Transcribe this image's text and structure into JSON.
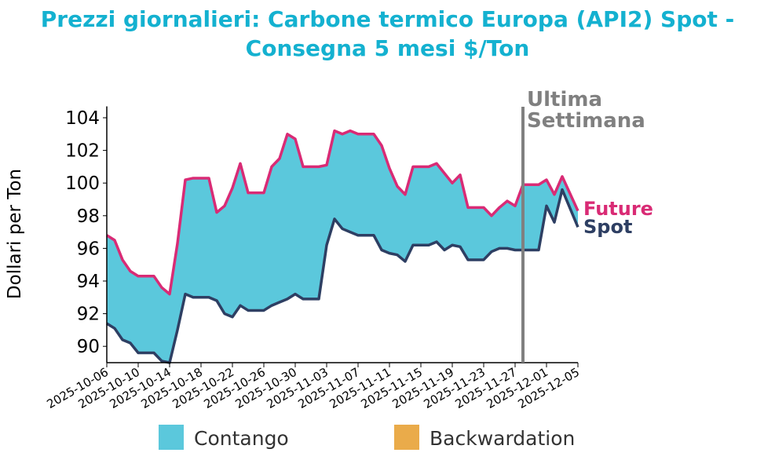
{
  "chart_data": {
    "type": "area",
    "title": "Prezzi giornalieri: Carbone termico Europa (API2) Spot - Consegna 5 mesi $/Ton",
    "ylabel": "Dollari per Ton",
    "xlabel": "",
    "ylim": [
      89,
      104.7
    ],
    "yticks": [
      90,
      92,
      94,
      96,
      98,
      100,
      102,
      104
    ],
    "xticks": [
      "2025-10-06",
      "2025-10-10",
      "2025-10-14",
      "2025-10-18",
      "2025-10-22",
      "2025-10-26",
      "2025-10-30",
      "2025-11-03",
      "2025-11-07",
      "2025-11-11",
      "2025-11-15",
      "2025-11-19",
      "2025-11-23",
      "2025-11-27",
      "2025-12-01",
      "2025-12-05"
    ],
    "x": [
      "2025-10-06",
      "2025-10-07",
      "2025-10-08",
      "2025-10-09",
      "2025-10-10",
      "2025-10-12",
      "2025-10-13",
      "2025-10-14",
      "2025-10-15",
      "2025-10-16",
      "2025-10-17",
      "2025-10-19",
      "2025-10-20",
      "2025-10-21",
      "2025-10-22",
      "2025-10-23",
      "2025-10-24",
      "2025-10-26",
      "2025-10-27",
      "2025-10-28",
      "2025-10-29",
      "2025-10-30",
      "2025-10-31",
      "2025-11-02",
      "2025-11-03",
      "2025-11-04",
      "2025-11-05",
      "2025-11-06",
      "2025-11-07",
      "2025-11-09",
      "2025-11-10",
      "2025-11-11",
      "2025-11-12",
      "2025-11-13",
      "2025-11-14",
      "2025-11-16",
      "2025-11-17",
      "2025-11-18",
      "2025-11-19",
      "2025-11-20",
      "2025-11-21",
      "2025-11-23",
      "2025-11-24",
      "2025-11-25",
      "2025-11-26",
      "2025-11-27",
      "2025-11-28",
      "2025-11-30",
      "2025-12-01",
      "2025-12-02",
      "2025-12-03",
      "2025-12-05"
    ],
    "series": [
      {
        "name": "Future",
        "color": "#d92b75",
        "values": [
          96.8,
          96.5,
          95.3,
          94.6,
          94.3,
          94.3,
          93.6,
          93.2,
          96.3,
          100.2,
          100.3,
          100.3,
          98.2,
          98.6,
          99.7,
          101.2,
          99.4,
          99.4,
          101.0,
          101.5,
          103.0,
          102.7,
          101.0,
          101.0,
          101.1,
          103.2,
          103.0,
          103.2,
          103.0,
          103.0,
          102.3,
          100.9,
          99.8,
          99.3,
          101.0,
          101.0,
          101.2,
          100.6,
          100.0,
          100.5,
          98.5,
          98.5,
          98.0,
          98.5,
          98.9,
          98.6,
          99.9,
          99.9,
          100.2,
          99.3,
          100.4,
          98.3
        ]
      },
      {
        "name": "Spot",
        "color": "#2e3f63",
        "values": [
          91.4,
          91.1,
          90.4,
          90.2,
          89.6,
          89.6,
          89.1,
          89.0,
          91.0,
          93.2,
          93.0,
          93.0,
          92.8,
          92.0,
          91.8,
          92.5,
          92.2,
          92.2,
          92.5,
          92.7,
          92.9,
          93.2,
          92.9,
          92.9,
          96.2,
          97.8,
          97.2,
          97.0,
          96.8,
          96.8,
          95.9,
          95.7,
          95.6,
          95.2,
          96.2,
          96.2,
          96.4,
          95.9,
          96.2,
          96.1,
          95.3,
          95.3,
          95.8,
          96.0,
          96.0,
          95.9,
          95.9,
          95.9,
          98.6,
          97.6,
          99.6,
          97.3
        ]
      }
    ],
    "annotation": {
      "label_line1": "Ultima",
      "label_line2": "Settimana",
      "date": "2025-11-28",
      "color": "#808080"
    },
    "legend": {
      "placement": "bottom",
      "items": [
        {
          "label": "Contango",
          "color": "#5bc8dc"
        },
        {
          "label": "Backwardation",
          "color": "#eaab4a"
        }
      ]
    }
  }
}
